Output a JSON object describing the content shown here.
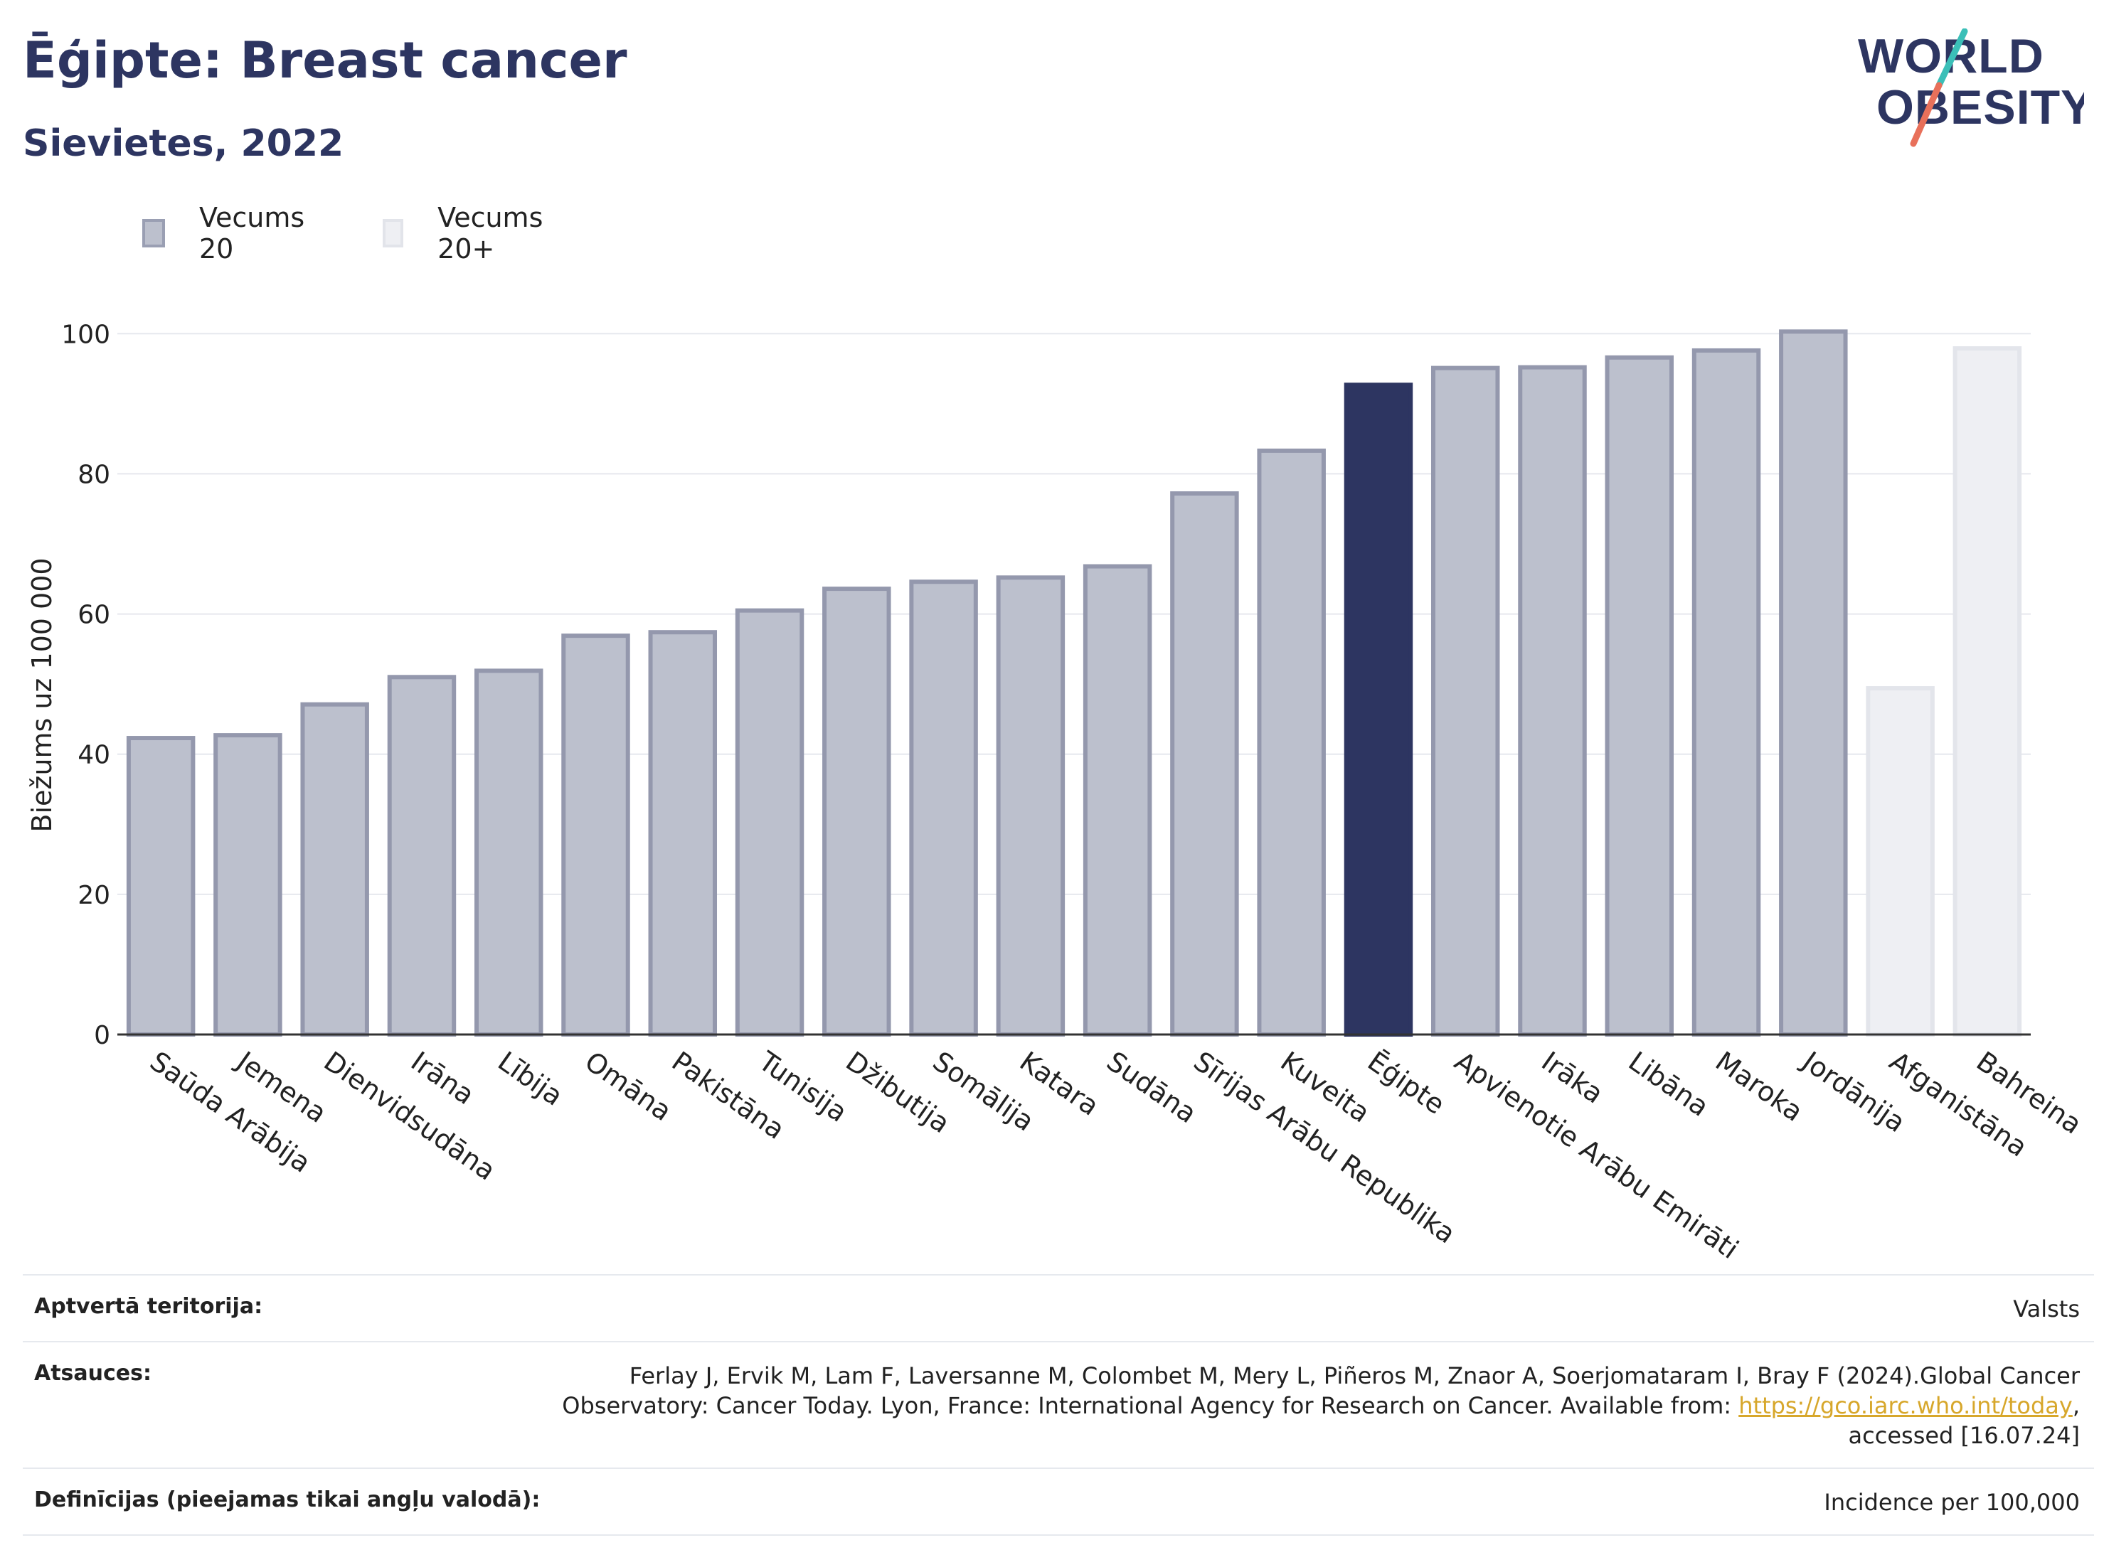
{
  "header": {
    "title": "Ēģipte: Breast cancer",
    "subtitle": "Sievietes, 2022",
    "logo_line1": "WORLD",
    "logo_line2": "OBESITY"
  },
  "legend": [
    {
      "label": "Vecums 20",
      "color": "#bcc0cd",
      "border": "#9a9fb3"
    },
    {
      "label": "Vecums 20+",
      "color": "#eeeff3",
      "border": "#e2e4ea"
    }
  ],
  "colors": {
    "bar_default": "#bcc0cd",
    "bar_default_border": "#9498ad",
    "bar_highlight": "#2d3561",
    "bar_light": "#eeeff3",
    "bar_light_border": "#e3e5eb",
    "title": "#2d3561",
    "logo_teal": "#3bbfb8",
    "logo_coral": "#e8705a"
  },
  "chart_data": {
    "type": "bar",
    "title": "Ēģipte: Breast cancer",
    "subtitle": "Sievietes, 2022",
    "xlabel": "",
    "ylabel": "Biežums uz 100 000",
    "ylim": [
      0,
      105
    ],
    "yticks": [
      0,
      20,
      40,
      60,
      80,
      100
    ],
    "grid": true,
    "legend_position": "top-left",
    "categories": [
      "Saūda Arābija",
      "Jemena",
      "Dienvidsudāna",
      "Irāna",
      "Lībija",
      "Omāna",
      "Pakistāna",
      "Tunisija",
      "Džibutija",
      "Somālija",
      "Katara",
      "Sudāna",
      "Sīrijas Arābu Republika",
      "Kuveita",
      "Ēģipte",
      "Apvienotie Arābu Emirāti",
      "Irāka",
      "Libāna",
      "Maroka",
      "Jordānija",
      "Afganistāna",
      "Bahreina"
    ],
    "values": [
      42.3,
      42.7,
      47.1,
      51.0,
      51.9,
      56.9,
      57.4,
      60.5,
      63.6,
      64.6,
      65.2,
      66.8,
      77.2,
      83.3,
      92.7,
      95.1,
      95.2,
      96.6,
      97.6,
      100.3,
      49.4,
      97.9
    ],
    "series_group": [
      "Vecums 20",
      "Vecums 20",
      "Vecums 20",
      "Vecums 20",
      "Vecums 20",
      "Vecums 20",
      "Vecums 20",
      "Vecums 20",
      "Vecums 20",
      "Vecums 20",
      "Vecums 20",
      "Vecums 20",
      "Vecums 20",
      "Vecums 20",
      "Vecums 20",
      "Vecums 20",
      "Vecums 20",
      "Vecums 20",
      "Vecums 20",
      "Vecums 20",
      "Vecums 20+",
      "Vecums 20+"
    ],
    "highlight": "Ēģipte"
  },
  "footer": {
    "rows": [
      {
        "label": "Aptvertā teritorija:",
        "value": "Valsts"
      },
      {
        "label": "Atsauces:",
        "value_line1": "Ferlay J, Ervik M, Lam F, Laversanne M, Colombet M, Mery L, Piñeros M, Znaor A, Soerjomataram I, Bray F (2024).Global Cancer",
        "value_line2_pre": "Observatory: Cancer Today. Lyon, France: International Agency for Research on Cancer. Available from: ",
        "link": "https://gco.iarc.who.int/today",
        "value_line2_post": ",",
        "value_line3": "accessed [16.07.24]"
      },
      {
        "label": "Definīcijas (pieejamas tikai angļu valodā):",
        "value": "Incidence per 100,000"
      }
    ]
  }
}
